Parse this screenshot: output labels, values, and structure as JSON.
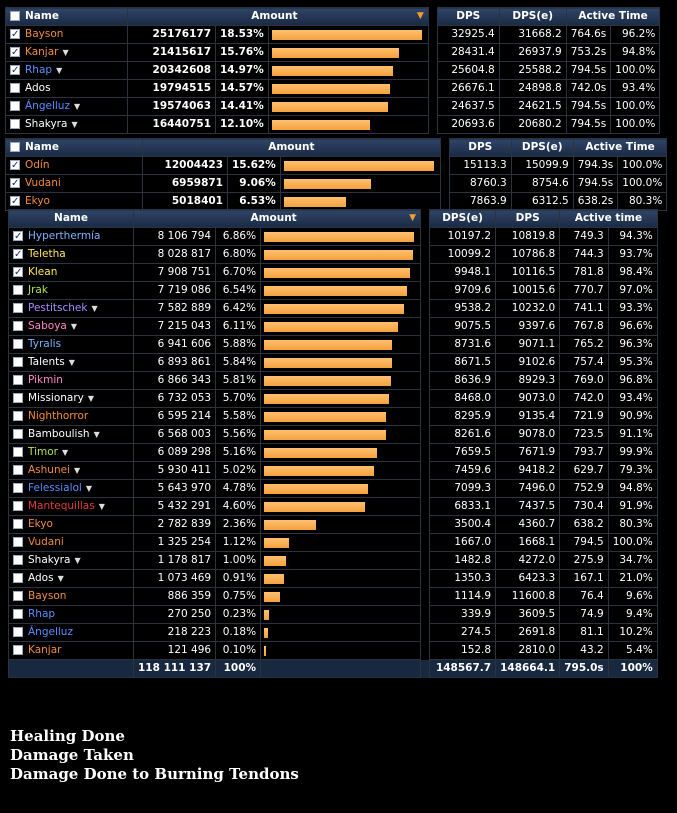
{
  "table1": {
    "headers": {
      "name": "Name",
      "amount": "Amount",
      "dps": "DPS",
      "dpse": "DPS(e)",
      "active": "Active Time"
    },
    "rows": [
      {
        "name": "Bayson",
        "color": "#f08c3c",
        "checked": true,
        "dd": false,
        "amount": "25176177",
        "pct": "18.53%",
        "frac": 1.0,
        "dps": "32925.4",
        "dpse": "31668.2",
        "time": "764.6s",
        "tpct": "96.2%"
      },
      {
        "name": "Kanjar",
        "color": "#f08c3c",
        "checked": true,
        "dd": true,
        "amount": "21415617",
        "pct": "15.76%",
        "frac": 0.851,
        "dps": "28431.4",
        "dpse": "26937.9",
        "time": "753.2s",
        "tpct": "94.8%"
      },
      {
        "name": "Rhap",
        "color": "#5b8dff",
        "checked": true,
        "dd": true,
        "amount": "20342608",
        "pct": "14.97%",
        "frac": 0.808,
        "dps": "25604.8",
        "dpse": "25588.2",
        "time": "794.5s",
        "tpct": "100.0%"
      },
      {
        "name": "Ados",
        "color": "#ffffff",
        "checked": false,
        "dd": false,
        "amount": "19794515",
        "pct": "14.57%",
        "frac": 0.786,
        "dps": "26676.1",
        "dpse": "24898.8",
        "time": "742.0s",
        "tpct": "93.4%"
      },
      {
        "name": "Ángelluz",
        "color": "#5b8dff",
        "checked": false,
        "dd": true,
        "amount": "19574063",
        "pct": "14.41%",
        "frac": 0.777,
        "dps": "24637.5",
        "dpse": "24621.5",
        "time": "794.5s",
        "tpct": "100.0%"
      },
      {
        "name": "Shakyra",
        "color": "#ffffff",
        "checked": false,
        "dd": true,
        "amount": "16440751",
        "pct": "12.10%",
        "frac": 0.653,
        "dps": "20693.6",
        "dpse": "20680.2",
        "time": "794.5s",
        "tpct": "100.0%"
      }
    ]
  },
  "table2": {
    "headers": {
      "name": "Name",
      "amount": "Amount",
      "dps": "DPS",
      "dpse": "DPS(e)",
      "active": "Active Time"
    },
    "rows": [
      {
        "name": "Odín",
        "color": "#f08c3c",
        "checked": true,
        "amount": "12004423",
        "pct": "15.62%",
        "frac": 1.0,
        "dps": "15113.3",
        "dpse": "15099.9",
        "time": "794.3s",
        "tpct": "100.0%"
      },
      {
        "name": "Vudani",
        "color": "#f08c3c",
        "checked": true,
        "amount": "6959871",
        "pct": "9.06%",
        "frac": 0.58,
        "dps": "8760.3",
        "dpse": "8754.6",
        "time": "794.5s",
        "tpct": "100.0%"
      },
      {
        "name": "Ekyo",
        "color": "#f08c3c",
        "checked": true,
        "amount": "5018401",
        "pct": "6.53%",
        "frac": 0.418,
        "dps": "7863.9",
        "dpse": "6312.5",
        "time": "638.2s",
        "tpct": "80.3%"
      }
    ]
  },
  "table3": {
    "headers": {
      "name": "Name",
      "amount": "Amount",
      "dpse": "DPS(e)",
      "dps": "DPS",
      "active": "Active time"
    },
    "rows": [
      {
        "name": "Hyperthermía",
        "color": "#7fb2ff",
        "checked": true,
        "dd": false,
        "amount": "8 106 794",
        "pct": "6.86%",
        "frac": 1.0,
        "dpse": "10197.2",
        "dps": "10819.8",
        "time": "749.3",
        "tpct": "94.3%"
      },
      {
        "name": "Teletha",
        "color": "#ffe85c",
        "checked": true,
        "dd": false,
        "amount": "8 028 817",
        "pct": "6.80%",
        "frac": 0.99,
        "dpse": "10099.2",
        "dps": "10786.8",
        "time": "744.3",
        "tpct": "93.7%"
      },
      {
        "name": "Klean",
        "color": "#ffe85c",
        "checked": true,
        "dd": false,
        "amount": "7 908 751",
        "pct": "6.70%",
        "frac": 0.976,
        "dpse": "9948.1",
        "dps": "10116.5",
        "time": "781.8",
        "tpct": "98.4%"
      },
      {
        "name": "Jrak",
        "color": "#b4e04c",
        "checked": false,
        "dd": false,
        "amount": "7 719 086",
        "pct": "6.54%",
        "frac": 0.952,
        "dpse": "9709.6",
        "dps": "10015.6",
        "time": "770.7",
        "tpct": "97.0%"
      },
      {
        "name": "Pestitschek",
        "color": "#a88cff",
        "checked": false,
        "dd": true,
        "amount": "7 582 889",
        "pct": "6.42%",
        "frac": 0.935,
        "dpse": "9538.2",
        "dps": "10232.0",
        "time": "741.1",
        "tpct": "93.3%"
      },
      {
        "name": "Saboya",
        "color": "#ff88c8",
        "checked": false,
        "dd": true,
        "amount": "7 215 043",
        "pct": "6.11%",
        "frac": 0.89,
        "dpse": "9075.5",
        "dps": "9397.6",
        "time": "767.8",
        "tpct": "96.6%"
      },
      {
        "name": "Tyralis",
        "color": "#7fb2ff",
        "checked": false,
        "dd": false,
        "amount": "6 941 606",
        "pct": "5.88%",
        "frac": 0.856,
        "dpse": "8731.6",
        "dps": "9071.1",
        "time": "765.2",
        "tpct": "96.3%"
      },
      {
        "name": "Talents",
        "color": "#ffffff",
        "checked": false,
        "dd": true,
        "amount": "6 893 861",
        "pct": "5.84%",
        "frac": 0.85,
        "dpse": "8671.5",
        "dps": "9102.6",
        "time": "757.4",
        "tpct": "95.3%"
      },
      {
        "name": "Pikmin",
        "color": "#ff88c8",
        "checked": false,
        "dd": false,
        "amount": "6 866 343",
        "pct": "5.81%",
        "frac": 0.847,
        "dpse": "8636.9",
        "dps": "8929.3",
        "time": "769.0",
        "tpct": "96.8%"
      },
      {
        "name": "Missionary",
        "color": "#ffffff",
        "checked": false,
        "dd": true,
        "amount": "6 732 053",
        "pct": "5.70%",
        "frac": 0.83,
        "dpse": "8468.0",
        "dps": "9073.0",
        "time": "742.0",
        "tpct": "93.4%"
      },
      {
        "name": "Nighthorror",
        "color": "#f08c3c",
        "checked": false,
        "dd": false,
        "amount": "6 595 214",
        "pct": "5.58%",
        "frac": 0.814,
        "dpse": "8295.9",
        "dps": "9135.4",
        "time": "721.9",
        "tpct": "90.9%"
      },
      {
        "name": "Bamboulish",
        "color": "#ffffff",
        "checked": false,
        "dd": true,
        "amount": "6 568 003",
        "pct": "5.56%",
        "frac": 0.81,
        "dpse": "8261.6",
        "dps": "9078.0",
        "time": "723.5",
        "tpct": "91.1%"
      },
      {
        "name": "Timor",
        "color": "#b4e04c",
        "checked": false,
        "dd": true,
        "amount": "6 089 298",
        "pct": "5.16%",
        "frac": 0.751,
        "dpse": "7659.5",
        "dps": "7671.9",
        "time": "793.7",
        "tpct": "99.9%"
      },
      {
        "name": "Ashunei",
        "color": "#f08c3c",
        "checked": false,
        "dd": true,
        "amount": "5 930 411",
        "pct": "5.02%",
        "frac": 0.731,
        "dpse": "7459.6",
        "dps": "9418.2",
        "time": "629.7",
        "tpct": "79.3%"
      },
      {
        "name": "Felessialol",
        "color": "#5b8dff",
        "checked": false,
        "dd": true,
        "amount": "5 643 970",
        "pct": "4.78%",
        "frac": 0.696,
        "dpse": "7099.3",
        "dps": "7496.0",
        "time": "752.9",
        "tpct": "94.8%"
      },
      {
        "name": "Mantequillas",
        "color": "#e03c3c",
        "checked": false,
        "dd": true,
        "amount": "5 432 291",
        "pct": "4.60%",
        "frac": 0.67,
        "dpse": "6833.1",
        "dps": "7437.5",
        "time": "730.4",
        "tpct": "91.9%"
      },
      {
        "name": "Ekyo",
        "color": "#f08c3c",
        "checked": false,
        "dd": false,
        "amount": "2 782 839",
        "pct": "2.36%",
        "frac": 0.343,
        "dpse": "3500.4",
        "dps": "4360.7",
        "time": "638.2",
        "tpct": "80.3%"
      },
      {
        "name": "Vudani",
        "color": "#f08c3c",
        "checked": false,
        "dd": false,
        "amount": "1 325 254",
        "pct": "1.12%",
        "frac": 0.163,
        "dpse": "1667.0",
        "dps": "1668.1",
        "time": "794.5",
        "tpct": "100.0%"
      },
      {
        "name": "Shakyra",
        "color": "#ffffff",
        "checked": false,
        "dd": true,
        "amount": "1 178 817",
        "pct": "1.00%",
        "frac": 0.145,
        "dpse": "1482.8",
        "dps": "4272.0",
        "time": "275.9",
        "tpct": "34.7%"
      },
      {
        "name": "Ados",
        "color": "#ffffff",
        "checked": false,
        "dd": true,
        "amount": "1 073 469",
        "pct": "0.91%",
        "frac": 0.132,
        "dpse": "1350.3",
        "dps": "6423.3",
        "time": "167.1",
        "tpct": "21.0%"
      },
      {
        "name": "Bayson",
        "color": "#f08c3c",
        "checked": false,
        "dd": false,
        "amount": "886 359",
        "pct": "0.75%",
        "frac": 0.109,
        "dpse": "1114.9",
        "dps": "11600.8",
        "time": "76.4",
        "tpct": "9.6%"
      },
      {
        "name": "Rhap",
        "color": "#5b8dff",
        "checked": false,
        "dd": false,
        "amount": "270 250",
        "pct": "0.23%",
        "frac": 0.033,
        "dpse": "339.9",
        "dps": "3609.5",
        "time": "74.9",
        "tpct": "9.4%"
      },
      {
        "name": "Ángelluz",
        "color": "#5b8dff",
        "checked": false,
        "dd": false,
        "amount": "218 223",
        "pct": "0.18%",
        "frac": 0.027,
        "dpse": "274.5",
        "dps": "2691.8",
        "time": "81.1",
        "tpct": "10.2%"
      },
      {
        "name": "Kanjar",
        "color": "#f08c3c",
        "checked": false,
        "dd": false,
        "amount": "121 496",
        "pct": "0.10%",
        "frac": 0.015,
        "dpse": "152.8",
        "dps": "2810.0",
        "time": "43.2",
        "tpct": "5.4%"
      }
    ],
    "total": {
      "amount": "118 111 137",
      "pct": "100%",
      "dpse": "148567.7",
      "dps": "148664.1",
      "time": "795.0s",
      "tpct": "100%"
    }
  },
  "legend": [
    "Healing Done",
    "Damage Taken",
    "Damage Done to Burning Tendons"
  ],
  "icons": {
    "sort": "sort-desc-arrow-icon",
    "dropdown": "dropdown-triangle-icon",
    "checkbox": "checkbox-icon"
  }
}
